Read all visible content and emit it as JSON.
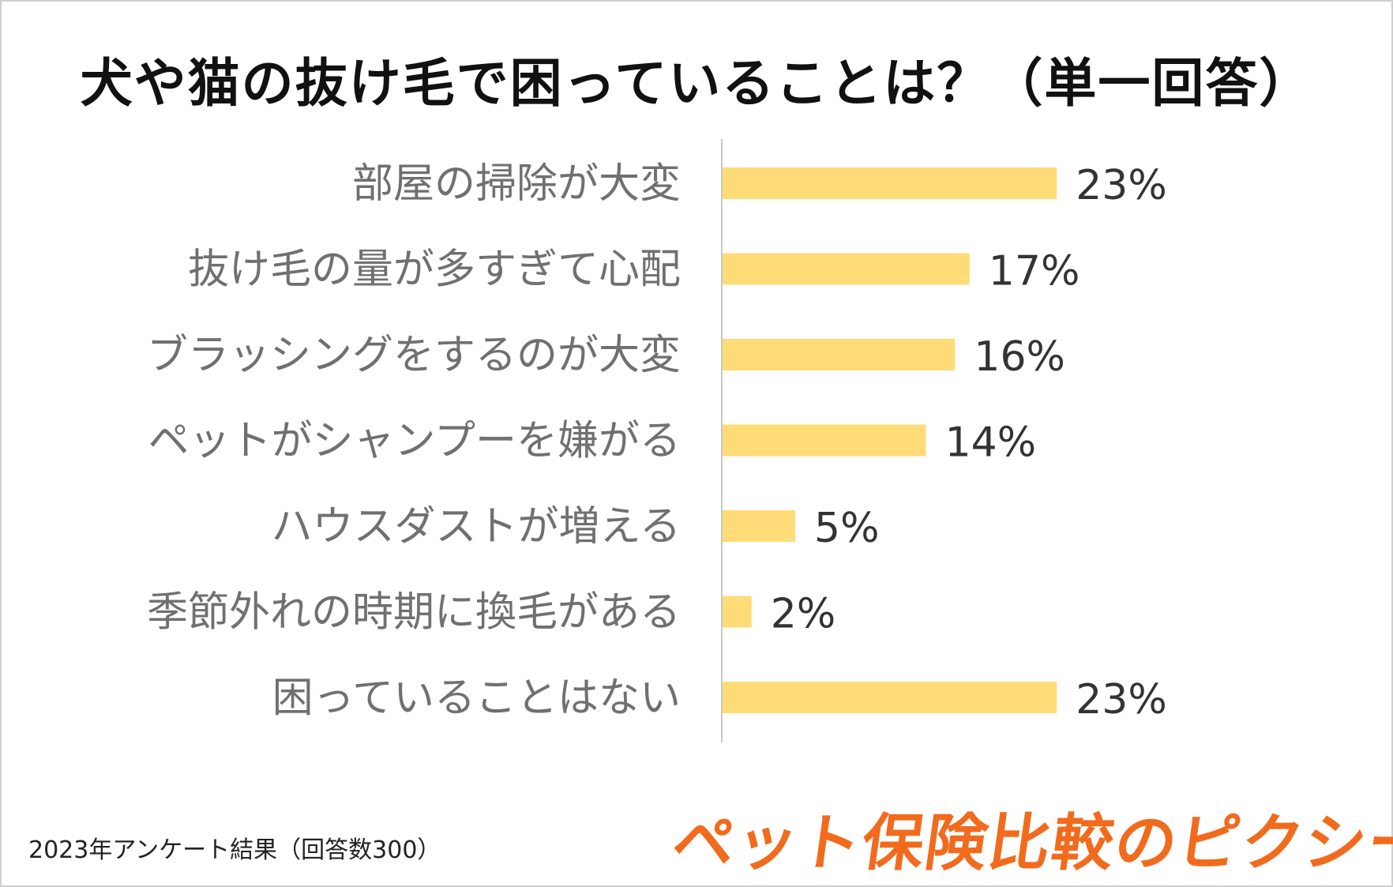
{
  "chart_data": {
    "type": "bar",
    "orientation": "horizontal",
    "title": "犬や猫の抜け毛で困っていることは？（単一回答）",
    "categories": [
      "部屋の掃除が大変",
      "抜け毛の量が多すぎて心配",
      "ブラッシングをするのが大変",
      "ペットがシャンプーを嫌がる",
      "ハウスダストが増える",
      "季節外れの時期に換毛がある",
      "困っていることはない"
    ],
    "values": [
      23,
      17,
      16,
      14,
      5,
      2,
      23
    ],
    "value_labels": [
      "23%",
      "17%",
      "16%",
      "14%",
      "5%",
      "2%",
      "23%"
    ],
    "unit": "%",
    "bar_color": "#ffdc78",
    "axis_color": "#c8c8c8",
    "grid": false,
    "legend": "none"
  },
  "footnote": "2023年アンケート結果（回答数300）",
  "brand": "ペット保険比較のピクシー",
  "colors": {
    "brand": "#f26b1d",
    "title": "#111111",
    "category_text": "#707070",
    "value_text": "#333333"
  }
}
